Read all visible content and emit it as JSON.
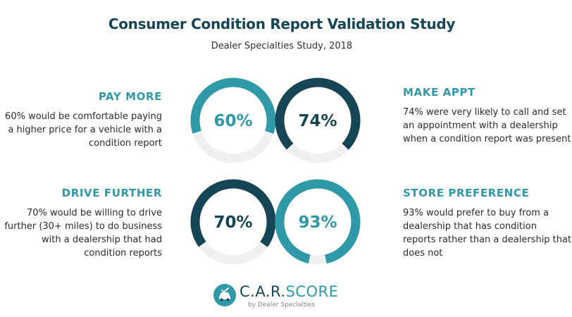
{
  "header": {
    "title": "Consumer Condition Report Validation Study",
    "subtitle": "Dealer Specialties Study, 2018"
  },
  "stats": [
    {
      "heading": "PAY MORE",
      "text": "60% would be comfortable paying a higher price for a vehicle with a condition report"
    },
    {
      "heading": "MAKE APPT",
      "text": "74% were very likely to call and set an appointment with a dealership when a condition report was present"
    },
    {
      "heading": "DRIVE FURTHER",
      "text": "70% would be willing to drive further (30+ miles) to do business with a dealership that had condition reports"
    },
    {
      "heading": "STORE PREFERENCE",
      "text": "93% would prefer to buy from a dealership that has condition reports rather than a dealership that does not"
    }
  ],
  "chart_data": {
    "type": "donut",
    "title": "Consumer Condition Report Validation Study",
    "subtitle": "Dealer Specialties Study, 2018",
    "categories": [
      "PAY MORE",
      "MAKE APPT",
      "DRIVE FURTHER",
      "STORE PREFERENCE"
    ],
    "values": [
      60,
      74,
      70,
      93
    ],
    "value_labels": [
      "60%",
      "74%",
      "70%",
      "93%"
    ],
    "max": 100,
    "colors": [
      "#2f99a8",
      "#164556",
      "#164556",
      "#2f99a8"
    ],
    "track_color": "#f0f0f0"
  },
  "logo": {
    "brand_part1": "C.A.R.",
    "brand_part2": "SCORE",
    "tagline": "by Dealer Specialties",
    "icon": "car-check-icon",
    "color_primary": "#164556",
    "color_accent": "#2f99a8"
  }
}
